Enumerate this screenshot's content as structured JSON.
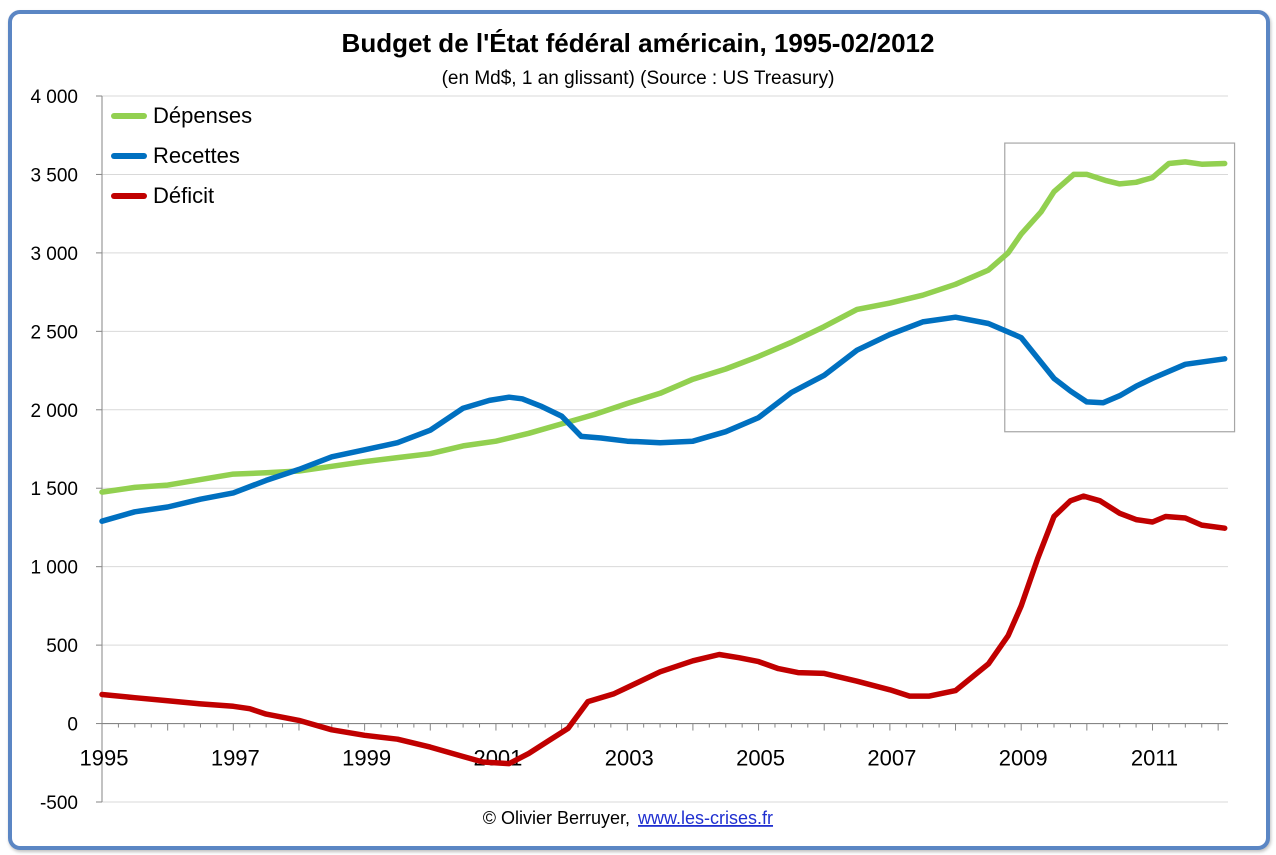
{
  "credit": {
    "text": "© Olivier Berruyer,",
    "link": "www.les-crises.fr",
    "link_color": "#1f2fd0"
  },
  "chart_data": {
    "type": "line",
    "title": "Budget de l'État fédéral américain, 1995-02/2012",
    "subtitle": "(en Md$, 1 an glissant) (Source : US Treasury)",
    "xlabel": "",
    "ylabel": "",
    "xlim": [
      1995,
      2012.15
    ],
    "ylim": [
      -500,
      4000
    ],
    "y_ticks": [
      -500,
      0,
      500,
      1000,
      1500,
      2000,
      2500,
      3000,
      3500,
      4000
    ],
    "y_tick_labels": [
      "-500",
      "0",
      "500",
      "1 000",
      "1 500",
      "2 000",
      "2 500",
      "3 000",
      "3 500",
      "4 000"
    ],
    "negative_tick_color": "#d40000",
    "x_tick_labels": [
      "1995",
      "1997",
      "1999",
      "2001",
      "2003",
      "2005",
      "2007",
      "2009",
      "2011"
    ],
    "x_tick_values": [
      1995,
      1997,
      1999,
      2001,
      2003,
      2005,
      2007,
      2009,
      2011
    ],
    "grid": true,
    "legend_position": "top-left",
    "highlight_box": {
      "x_range": [
        2008.75,
        2012.25
      ],
      "y_range": [
        1860,
        3700
      ]
    },
    "series": [
      {
        "name": "Dépenses",
        "color": "#92d050",
        "points": [
          [
            1995,
            1475
          ],
          [
            1995.5,
            1505
          ],
          [
            1996,
            1520
          ],
          [
            1996.5,
            1555
          ],
          [
            1997,
            1590
          ],
          [
            1997.5,
            1598
          ],
          [
            1998,
            1610
          ],
          [
            1998.5,
            1640
          ],
          [
            1999,
            1670
          ],
          [
            1999.5,
            1695
          ],
          [
            2000,
            1720
          ],
          [
            2000.5,
            1770
          ],
          [
            2001,
            1800
          ],
          [
            2001.5,
            1850
          ],
          [
            2002,
            1910
          ],
          [
            2002.5,
            1970
          ],
          [
            2003,
            2040
          ],
          [
            2003.5,
            2105
          ],
          [
            2004,
            2195
          ],
          [
            2004.5,
            2260
          ],
          [
            2005,
            2340
          ],
          [
            2005.5,
            2430
          ],
          [
            2006,
            2530
          ],
          [
            2006.5,
            2640
          ],
          [
            2007,
            2680
          ],
          [
            2007.5,
            2730
          ],
          [
            2008,
            2800
          ],
          [
            2008.5,
            2890
          ],
          [
            2008.8,
            3000
          ],
          [
            2009,
            3120
          ],
          [
            2009.3,
            3260
          ],
          [
            2009.5,
            3390
          ],
          [
            2009.8,
            3500
          ],
          [
            2010,
            3500
          ],
          [
            2010.3,
            3460
          ],
          [
            2010.5,
            3440
          ],
          [
            2010.75,
            3450
          ],
          [
            2011,
            3480
          ],
          [
            2011.25,
            3570
          ],
          [
            2011.5,
            3580
          ],
          [
            2011.75,
            3565
          ],
          [
            2012.1,
            3570
          ]
        ]
      },
      {
        "name": "Recettes",
        "color": "#0070c0",
        "points": [
          [
            1995,
            1290
          ],
          [
            1995.5,
            1350
          ],
          [
            1996,
            1380
          ],
          [
            1996.5,
            1430
          ],
          [
            1997,
            1470
          ],
          [
            1997.5,
            1550
          ],
          [
            1998,
            1620
          ],
          [
            1998.5,
            1700
          ],
          [
            1999,
            1745
          ],
          [
            1999.5,
            1790
          ],
          [
            2000,
            1870
          ],
          [
            2000.5,
            2010
          ],
          [
            2000.9,
            2060
          ],
          [
            2001.2,
            2080
          ],
          [
            2001.4,
            2070
          ],
          [
            2001.7,
            2020
          ],
          [
            2002,
            1960
          ],
          [
            2002.3,
            1830
          ],
          [
            2002.6,
            1820
          ],
          [
            2003,
            1800
          ],
          [
            2003.5,
            1790
          ],
          [
            2004,
            1800
          ],
          [
            2004.5,
            1860
          ],
          [
            2005,
            1950
          ],
          [
            2005.5,
            2110
          ],
          [
            2006,
            2220
          ],
          [
            2006.5,
            2380
          ],
          [
            2007,
            2480
          ],
          [
            2007.5,
            2560
          ],
          [
            2008,
            2590
          ],
          [
            2008.5,
            2550
          ],
          [
            2009,
            2460
          ],
          [
            2009.25,
            2330
          ],
          [
            2009.5,
            2200
          ],
          [
            2009.75,
            2120
          ],
          [
            2010,
            2050
          ],
          [
            2010.25,
            2045
          ],
          [
            2010.5,
            2090
          ],
          [
            2010.75,
            2150
          ],
          [
            2011,
            2200
          ],
          [
            2011.5,
            2290
          ],
          [
            2012.1,
            2325
          ]
        ]
      },
      {
        "name": "Déficit",
        "color": "#c00000",
        "points": [
          [
            1995,
            185
          ],
          [
            1995.5,
            165
          ],
          [
            1996,
            145
          ],
          [
            1996.5,
            125
          ],
          [
            1997,
            110
          ],
          [
            1997.25,
            95
          ],
          [
            1997.5,
            60
          ],
          [
            1998,
            20
          ],
          [
            1998.5,
            -40
          ],
          [
            1999,
            -75
          ],
          [
            1999.5,
            -100
          ],
          [
            2000,
            -150
          ],
          [
            2000.5,
            -210
          ],
          [
            2000.8,
            -245
          ],
          [
            2001.2,
            -255
          ],
          [
            2001.5,
            -190
          ],
          [
            2001.8,
            -110
          ],
          [
            2002.1,
            -30
          ],
          [
            2002.4,
            140
          ],
          [
            2002.8,
            190
          ],
          [
            2003,
            230
          ],
          [
            2003.5,
            330
          ],
          [
            2004,
            400
          ],
          [
            2004.4,
            440
          ],
          [
            2004.7,
            420
          ],
          [
            2005,
            395
          ],
          [
            2005.3,
            350
          ],
          [
            2005.6,
            325
          ],
          [
            2006,
            320
          ],
          [
            2006.5,
            270
          ],
          [
            2007,
            215
          ],
          [
            2007.3,
            175
          ],
          [
            2007.6,
            175
          ],
          [
            2008,
            210
          ],
          [
            2008.5,
            380
          ],
          [
            2008.8,
            560
          ],
          [
            2009,
            750
          ],
          [
            2009.25,
            1050
          ],
          [
            2009.5,
            1320
          ],
          [
            2009.75,
            1420
          ],
          [
            2009.95,
            1450
          ],
          [
            2010.2,
            1420
          ],
          [
            2010.5,
            1340
          ],
          [
            2010.75,
            1300
          ],
          [
            2011,
            1285
          ],
          [
            2011.2,
            1320
          ],
          [
            2011.5,
            1310
          ],
          [
            2011.75,
            1265
          ],
          [
            2012.1,
            1245
          ]
        ]
      }
    ]
  }
}
